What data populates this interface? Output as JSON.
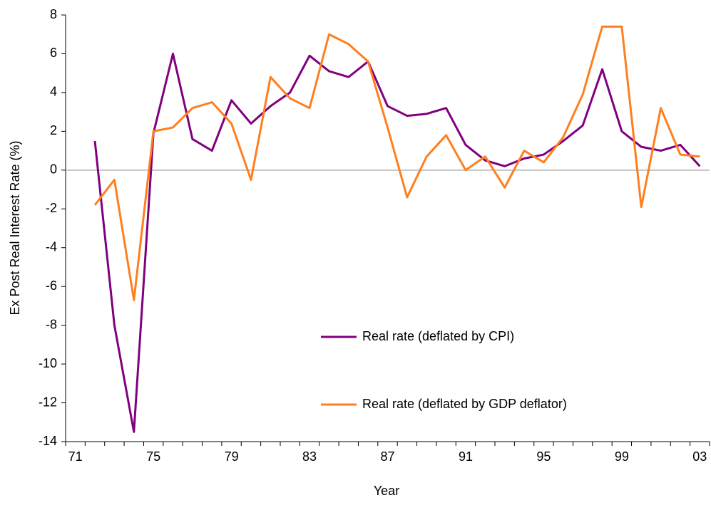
{
  "chart_data": {
    "type": "line",
    "y_label": "Ex Post Real Interest Rate (%)",
    "x_label": "Year",
    "categories": [
      "71",
      null,
      null,
      null,
      "75",
      null,
      null,
      null,
      "79",
      null,
      null,
      null,
      "83",
      null,
      null,
      null,
      "87",
      null,
      null,
      null,
      "91",
      null,
      null,
      null,
      "95",
      null,
      null,
      null,
      "99",
      null,
      null,
      null,
      "03"
    ],
    "series": [
      {
        "name": "Real rate (deflated by CPI)",
        "color": "#800080",
        "values": [
          null,
          1.5,
          -8,
          -13.5,
          1.9,
          6.0,
          1.6,
          1.0,
          3.6,
          2.4,
          3.3,
          4.0,
          5.9,
          5.1,
          4.8,
          5.6,
          3.3,
          2.8,
          2.9,
          3.2,
          1.3,
          0.5,
          0.2,
          0.6,
          0.8,
          1.5,
          2.3,
          5.2,
          2.0,
          1.2,
          1.0,
          1.3,
          0.2
        ]
      },
      {
        "name": "Real rate (deflated by GDP deflator)",
        "color": "#ff7f1e",
        "values": [
          null,
          -1.8,
          -0.5,
          -6.7,
          2.0,
          2.2,
          3.2,
          3.5,
          2.4,
          -0.5,
          4.8,
          3.7,
          3.2,
          7.0,
          6.5,
          5.6,
          2.2,
          -1.4,
          0.7,
          1.8,
          0.0,
          0.7,
          -0.9,
          1.0,
          0.4,
          1.7,
          3.9,
          7.4,
          7.4,
          -1.9,
          3.2,
          0.8,
          0.7
        ]
      }
    ],
    "ylim": [
      -14,
      8
    ],
    "yticks": [
      -14,
      -12,
      -10,
      -8,
      -6,
      -4,
      -2,
      0,
      2,
      4,
      6,
      8
    ],
    "grid": false
  }
}
